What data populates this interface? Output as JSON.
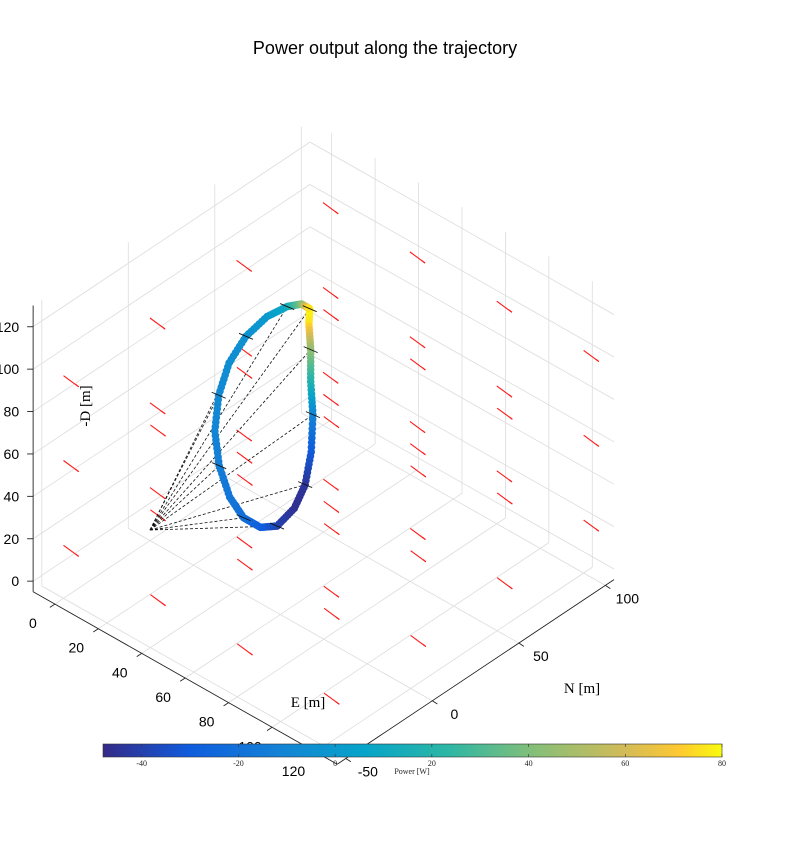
{
  "title": "Power output along the trajectory",
  "axes": {
    "x_label": "E [m]",
    "y_label": "N [m]",
    "z_label": "-D [m]",
    "x_ticks": [
      0,
      20,
      40,
      60,
      80,
      100,
      120
    ],
    "y_ticks": [
      -50,
      0,
      50,
      100
    ],
    "z_ticks": [
      0,
      20,
      40,
      60,
      80,
      100,
      120
    ]
  },
  "colorbar": {
    "label": "Power [W]",
    "ticks": [
      -40,
      -20,
      0,
      20,
      40,
      60,
      80
    ],
    "range": [
      -48,
      80
    ],
    "colormap": "parula"
  },
  "chart_data": {
    "type": "scatter",
    "plot_kind": "3d-trajectory-with-wind-quiver",
    "title": "Power output along the trajectory",
    "xlabel": "E [m]",
    "ylabel": "N [m]",
    "zlabel": "-D [m]",
    "xlim": [
      -10,
      130
    ],
    "ylim": [
      -55,
      105
    ],
    "zlim": [
      -5,
      130
    ],
    "grid": true,
    "wind_color": "#ff1a1a",
    "tether_color": "#111111",
    "anchor": {
      "E": 0,
      "N": 0,
      "D_up": 0
    },
    "trajectory": {
      "note": "loop trajectory colored by power output",
      "points": [
        {
          "E": 60,
          "N": 17,
          "D_up": 130,
          "power": 80
        },
        {
          "E": 62,
          "N": 14,
          "D_up": 126,
          "power": 76
        },
        {
          "E": 66,
          "N": 10,
          "D_up": 118,
          "power": 45
        },
        {
          "E": 70,
          "N": 5,
          "D_up": 108,
          "power": 20
        },
        {
          "E": 75,
          "N": 0,
          "D_up": 98,
          "power": -10
        },
        {
          "E": 79,
          "N": -6,
          "D_up": 86,
          "power": -30
        },
        {
          "E": 81,
          "N": -12,
          "D_up": 75,
          "power": -44
        },
        {
          "E": 80,
          "N": -17,
          "D_up": 66,
          "power": -46
        },
        {
          "E": 76,
          "N": -22,
          "D_up": 58,
          "power": -40
        },
        {
          "E": 70,
          "N": -24,
          "D_up": 55,
          "power": -30
        },
        {
          "E": 63,
          "N": -25,
          "D_up": 56,
          "power": -22
        },
        {
          "E": 55,
          "N": -23,
          "D_up": 60,
          "power": -18
        },
        {
          "E": 47,
          "N": -19,
          "D_up": 68,
          "power": -14
        },
        {
          "E": 41,
          "N": -14,
          "D_up": 78,
          "power": -10
        },
        {
          "E": 38,
          "N": -8,
          "D_up": 90,
          "power": -8
        },
        {
          "E": 38,
          "N": -2,
          "D_up": 102,
          "power": -6
        },
        {
          "E": 41,
          "N": 4,
          "D_up": 113,
          "power": -4
        },
        {
          "E": 46,
          "N": 10,
          "D_up": 122,
          "power": 0
        },
        {
          "E": 52,
          "N": 14,
          "D_up": 128,
          "power": 10
        },
        {
          "E": 57,
          "N": 16,
          "D_up": 131,
          "power": 40
        },
        {
          "E": 60,
          "N": 17,
          "D_up": 130,
          "power": 80
        }
      ]
    },
    "wind_field": {
      "grid_E": [
        0,
        40,
        80,
        120
      ],
      "grid_N": [
        -50,
        0,
        50,
        100
      ],
      "grid_D_up": [
        20,
        60,
        100
      ],
      "direction": "predominantly +E (slightly downward)"
    }
  }
}
